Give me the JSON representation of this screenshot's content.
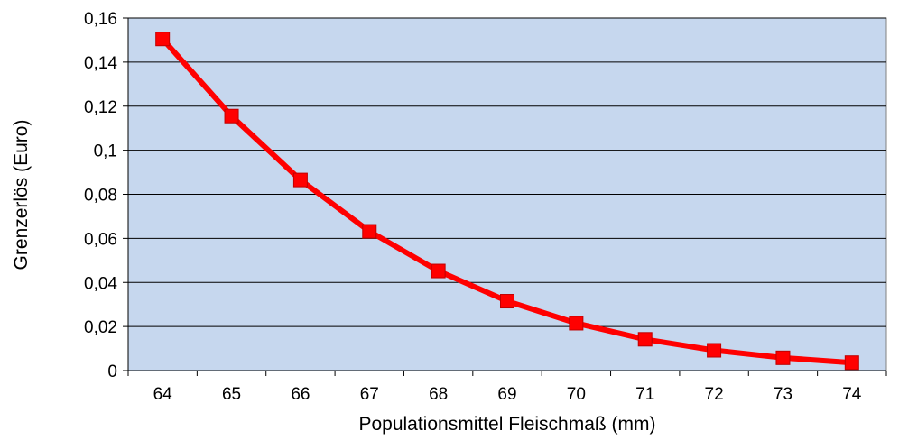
{
  "chart_data": {
    "type": "line",
    "title": "",
    "xlabel": "Populationsmittel Fleischmaß (mm)",
    "ylabel": "Grenzerlös (Euro)",
    "x": [
      64,
      65,
      66,
      67,
      68,
      69,
      70,
      71,
      72,
      73,
      74
    ],
    "x_tick_labels": [
      "64",
      "65",
      "66",
      "67",
      "68",
      "69",
      "70",
      "71",
      "72",
      "73",
      "74"
    ],
    "ylim": [
      0,
      0.16
    ],
    "y_ticks": [
      0,
      0.02,
      0.04,
      0.06,
      0.08,
      0.1,
      0.12,
      0.14,
      0.16
    ],
    "y_tick_labels": [
      "0",
      "0,02",
      "0,04",
      "0,06",
      "0,08",
      "0,1",
      "0,12",
      "0,14",
      "0,16"
    ],
    "series": [
      {
        "values": [
          0.1505,
          0.1155,
          0.0865,
          0.0632,
          0.0452,
          0.0315,
          0.0215,
          0.0142,
          0.0092,
          0.0058,
          0.0036
        ]
      }
    ],
    "grid": true,
    "legend": "none",
    "colors": {
      "plot_background": "#c6d7ee",
      "series_line": "#ff0000",
      "marker": "#ff0000",
      "grid": "#000000"
    }
  }
}
